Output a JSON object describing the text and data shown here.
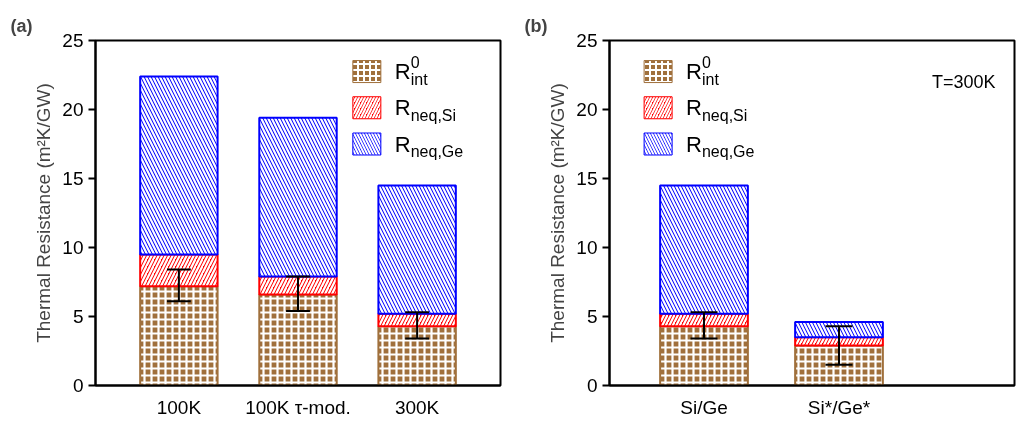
{
  "chart_data": [
    {
      "type": "bar",
      "title": "(a)",
      "ylabel": "Thermal Resistance (m²K/GW)",
      "categories": [
        "100K",
        "100K τ-mod.",
        "300K"
      ],
      "stacked": true,
      "ylim": [
        0,
        25
      ],
      "yticks": [
        0,
        5,
        10,
        15,
        20,
        25
      ],
      "legend": "top right",
      "series": [
        {
          "name": "R$^{0}$$_{int}$",
          "color": "#a0703c",
          "values": [
            7.2,
            6.6,
            4.3
          ],
          "errors": [
            [
              6.1,
              8.4
            ],
            [
              5.4,
              7.9
            ],
            [
              3.4,
              5.3
            ]
          ]
        },
        {
          "name": "R$_{neq,Si}$",
          "color": "#ff0000",
          "values": [
            2.3,
            1.3,
            0.9
          ]
        },
        {
          "name": "R$_{neq,Ge}$",
          "color": "#0000ff",
          "values": [
            12.9,
            11.5,
            9.3
          ]
        }
      ]
    },
    {
      "type": "bar",
      "title": "(b)",
      "ylabel": "Thermal Resistance (m²K/GW)",
      "categories": [
        "Si/Ge",
        "Si*/Ge*"
      ],
      "stacked": true,
      "ylim": [
        0,
        25
      ],
      "yticks": [
        0,
        5,
        10,
        15,
        20,
        25
      ],
      "legend": "top left",
      "annotations": [
        "T=300K"
      ],
      "series": [
        {
          "name": "R$^{0}$$_{int}$",
          "color": "#a0703c",
          "values": [
            4.3,
            2.9
          ],
          "errors": [
            [
              3.4,
              5.3
            ],
            [
              1.5,
              4.3
            ]
          ]
        },
        {
          "name": "R$_{neq,Si}$",
          "color": "#ff0000",
          "values": [
            0.9,
            0.6
          ]
        },
        {
          "name": "R$_{neq,Ge}$",
          "color": "#0000ff",
          "values": [
            9.3,
            1.1
          ]
        }
      ]
    }
  ]
}
